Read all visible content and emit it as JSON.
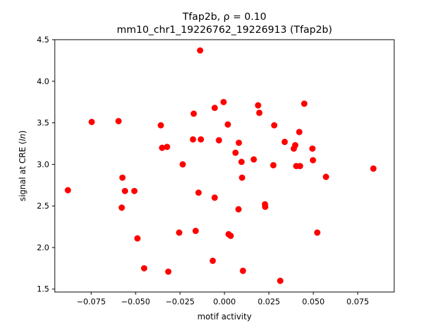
{
  "chart_data": {
    "type": "scatter",
    "title_line1": "Tfap2b, ρ = 0.10",
    "title_line2": "mm10_chr1_19226762_19226913 (Tfap2b)",
    "xlabel": "motif activity",
    "ylabel_main": "signal at CRE (",
    "ylabel_italic": "ln",
    "ylabel_end": ")",
    "xlim": [
      -0.0955,
      0.0955
    ],
    "ylim": [
      1.465,
      4.5
    ],
    "xticks": [
      {
        "value": -0.075,
        "label": "−0.075"
      },
      {
        "value": -0.05,
        "label": "−0.050"
      },
      {
        "value": -0.025,
        "label": "−0.025"
      },
      {
        "value": 0.0,
        "label": "0.000"
      },
      {
        "value": 0.025,
        "label": "0.025"
      },
      {
        "value": 0.05,
        "label": "0.050"
      },
      {
        "value": 0.075,
        "label": "0.075"
      }
    ],
    "yticks": [
      {
        "value": 1.5,
        "label": "1.5"
      },
      {
        "value": 2.0,
        "label": "2.0"
      },
      {
        "value": 2.5,
        "label": "2.5"
      },
      {
        "value": 3.0,
        "label": "3.0"
      },
      {
        "value": 3.5,
        "label": "3.5"
      },
      {
        "value": 4.0,
        "label": "4.0"
      },
      {
        "value": 4.5,
        "label": "4.5"
      }
    ],
    "marker_color": "#ff0000",
    "grid": false,
    "points": [
      {
        "x": -0.0881,
        "y": 2.69
      },
      {
        "x": -0.0747,
        "y": 3.51
      },
      {
        "x": -0.0596,
        "y": 3.52
      },
      {
        "x": -0.0578,
        "y": 2.48
      },
      {
        "x": -0.0574,
        "y": 2.84
      },
      {
        "x": -0.056,
        "y": 2.68
      },
      {
        "x": -0.0507,
        "y": 2.68
      },
      {
        "x": -0.049,
        "y": 2.11
      },
      {
        "x": -0.0452,
        "y": 1.75
      },
      {
        "x": -0.0358,
        "y": 3.47
      },
      {
        "x": -0.0351,
        "y": 3.2
      },
      {
        "x": -0.0323,
        "y": 3.21
      },
      {
        "x": -0.0316,
        "y": 1.71
      },
      {
        "x": -0.0255,
        "y": 2.18
      },
      {
        "x": -0.0235,
        "y": 3.0
      },
      {
        "x": -0.0177,
        "y": 3.3
      },
      {
        "x": -0.0173,
        "y": 3.61
      },
      {
        "x": -0.0162,
        "y": 2.2
      },
      {
        "x": -0.0146,
        "y": 2.66
      },
      {
        "x": -0.0137,
        "y": 4.37
      },
      {
        "x": -0.0133,
        "y": 3.3
      },
      {
        "x": -0.0066,
        "y": 1.84
      },
      {
        "x": -0.0055,
        "y": 3.68
      },
      {
        "x": -0.0055,
        "y": 2.6
      },
      {
        "x": -0.0031,
        "y": 3.29
      },
      {
        "x": -0.0005,
        "y": 3.75
      },
      {
        "x": 0.0019,
        "y": 3.48
      },
      {
        "x": 0.0023,
        "y": 2.16
      },
      {
        "x": 0.0035,
        "y": 2.14
      },
      {
        "x": 0.0062,
        "y": 3.14
      },
      {
        "x": 0.0079,
        "y": 2.46
      },
      {
        "x": 0.0081,
        "y": 3.26
      },
      {
        "x": 0.0096,
        "y": 3.03
      },
      {
        "x": 0.0099,
        "y": 2.84
      },
      {
        "x": 0.0104,
        "y": 1.72
      },
      {
        "x": 0.0165,
        "y": 3.06
      },
      {
        "x": 0.0189,
        "y": 3.71
      },
      {
        "x": 0.0196,
        "y": 3.62
      },
      {
        "x": 0.0228,
        "y": 2.52
      },
      {
        "x": 0.0229,
        "y": 2.49
      },
      {
        "x": 0.0275,
        "y": 2.99
      },
      {
        "x": 0.028,
        "y": 3.47
      },
      {
        "x": 0.0314,
        "y": 1.6
      },
      {
        "x": 0.0339,
        "y": 3.27
      },
      {
        "x": 0.039,
        "y": 3.19
      },
      {
        "x": 0.0398,
        "y": 3.23
      },
      {
        "x": 0.0404,
        "y": 2.98
      },
      {
        "x": 0.0421,
        "y": 3.39
      },
      {
        "x": 0.0425,
        "y": 2.98
      },
      {
        "x": 0.0449,
        "y": 3.73
      },
      {
        "x": 0.0495,
        "y": 3.19
      },
      {
        "x": 0.0498,
        "y": 3.05
      },
      {
        "x": 0.0522,
        "y": 2.18
      },
      {
        "x": 0.0571,
        "y": 2.85
      },
      {
        "x": 0.0838,
        "y": 2.95
      }
    ]
  }
}
